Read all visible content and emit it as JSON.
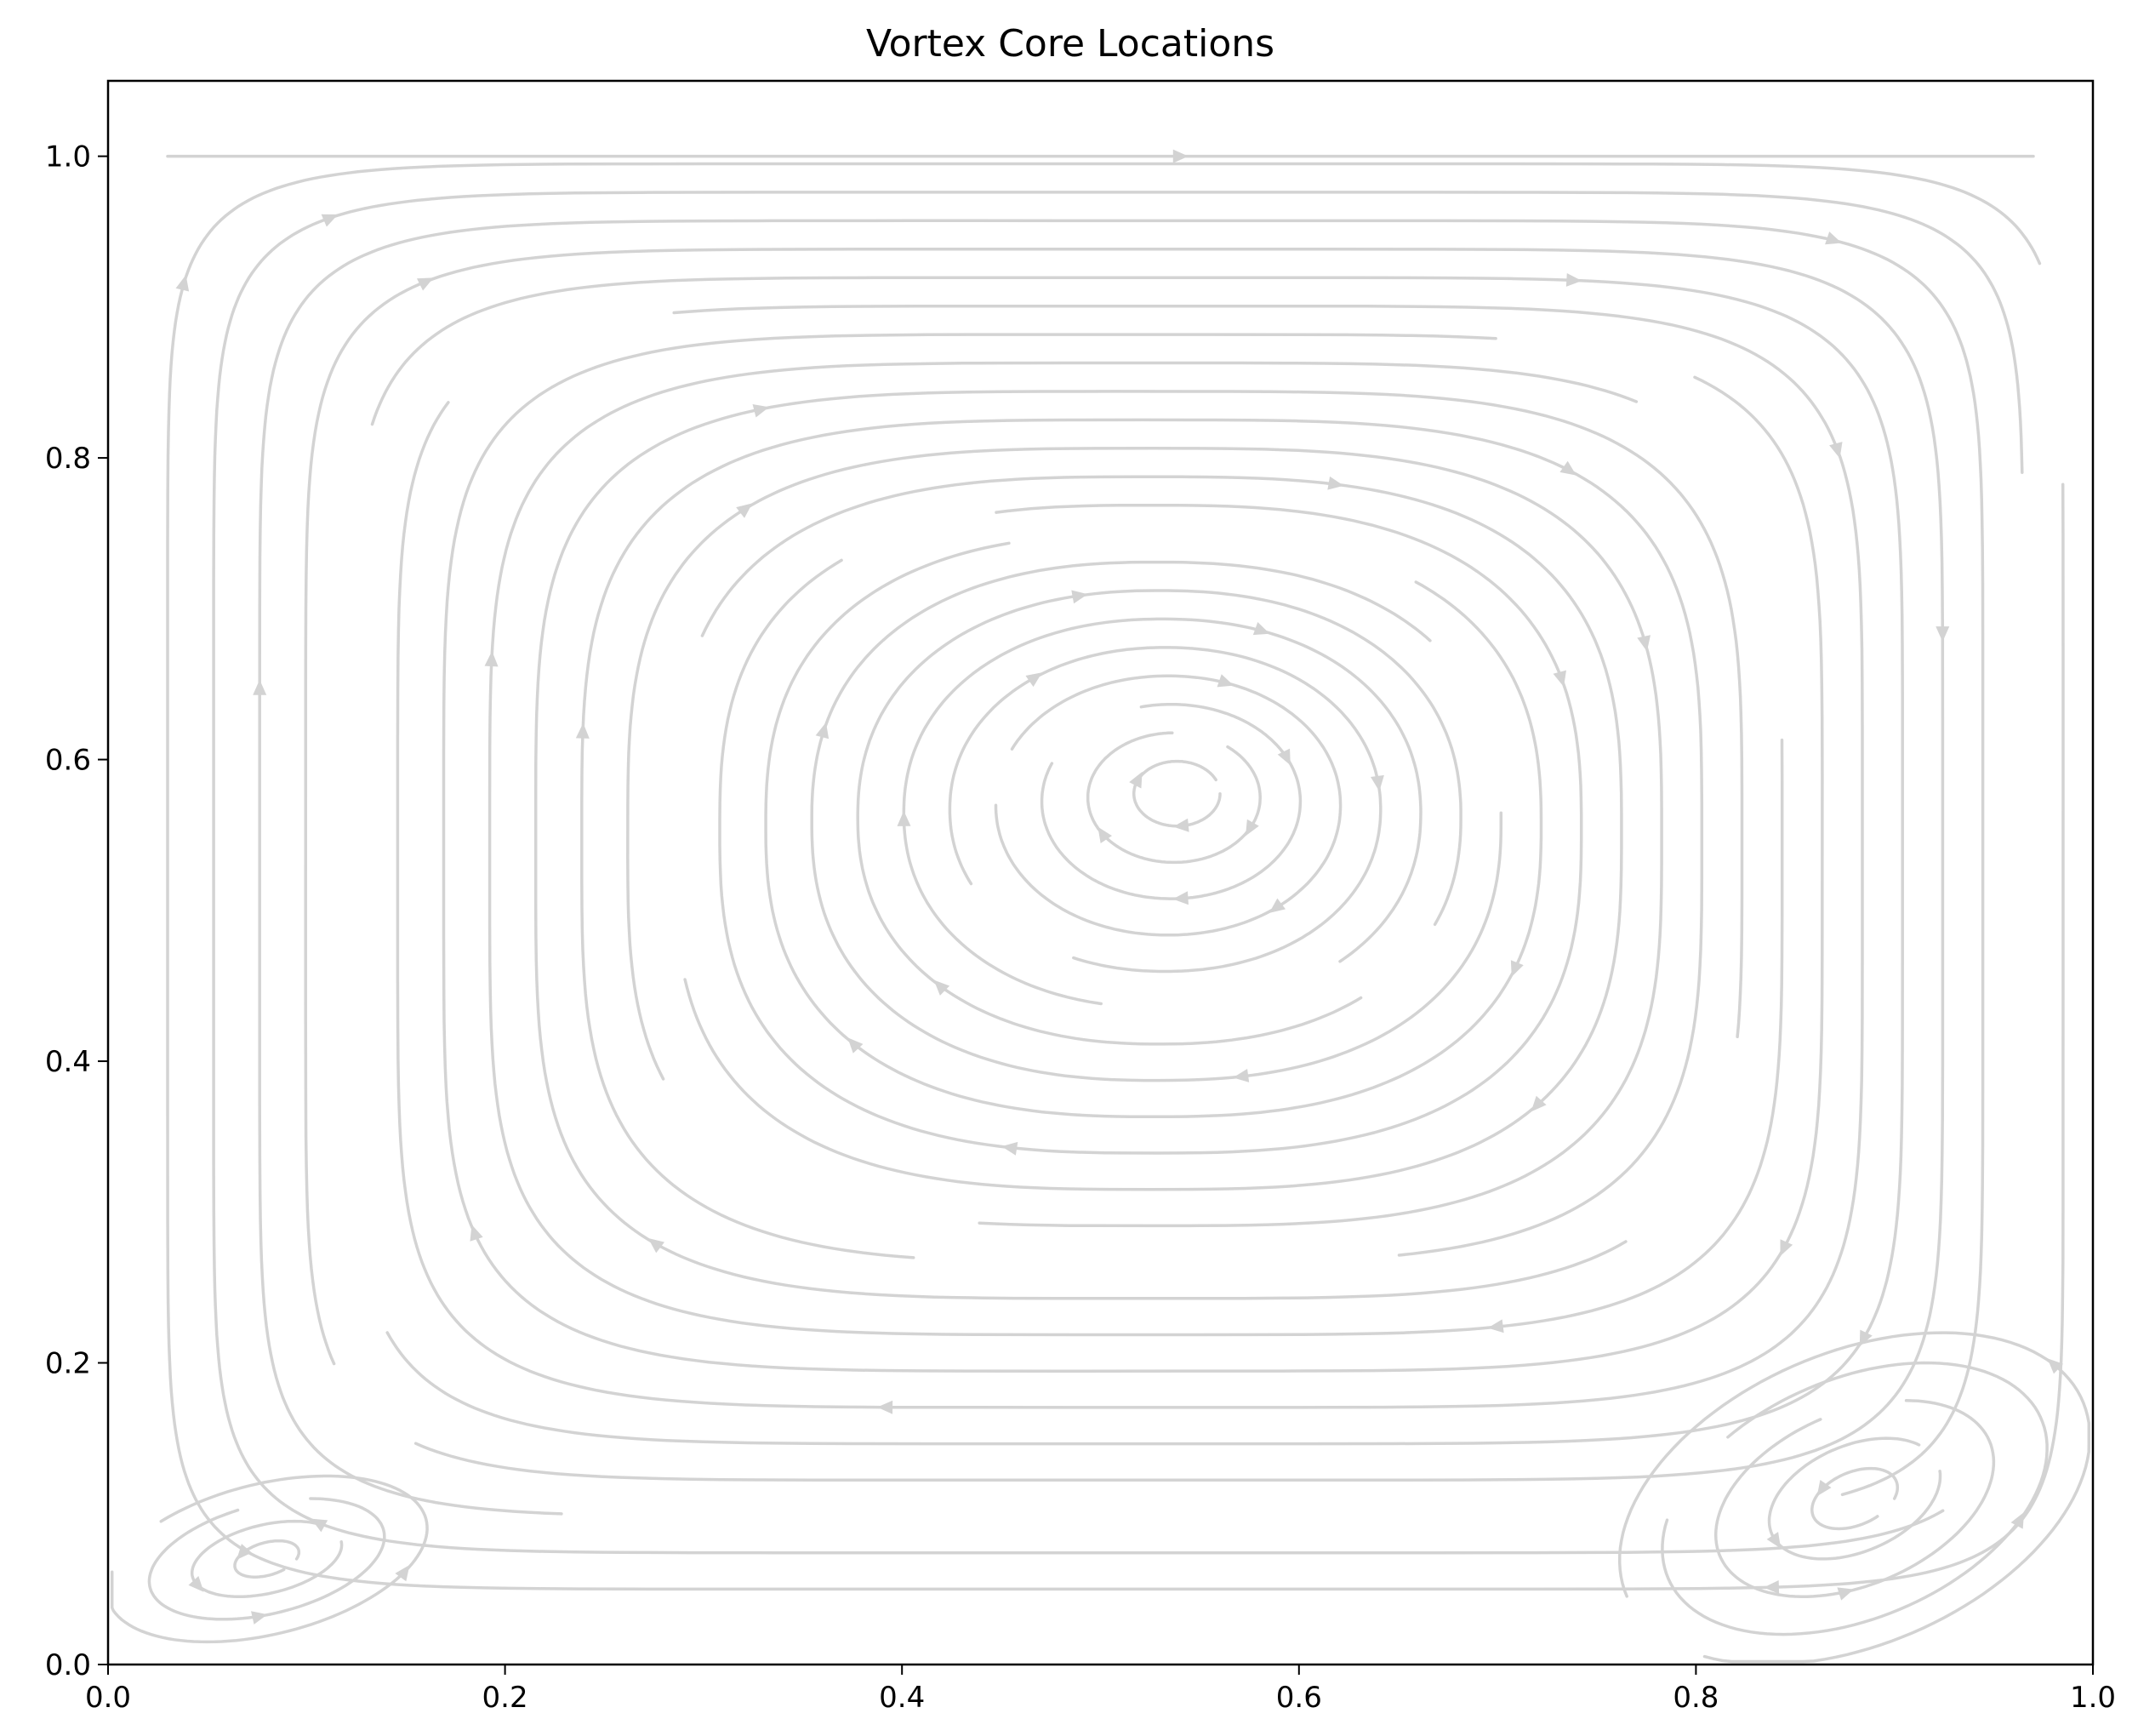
{
  "chart_data": {
    "type": "streamplot",
    "title": "Vortex Core Locations",
    "xlabel": "",
    "ylabel": "",
    "xlim": [
      0.0,
      1.0
    ],
    "ylim": [
      0.0,
      1.05
    ],
    "x_ticks": [
      "0.0",
      "0.2",
      "0.4",
      "0.6",
      "0.8",
      "1.0"
    ],
    "y_ticks": [
      "0.0",
      "0.2",
      "0.4",
      "0.6",
      "0.8",
      "1.0"
    ],
    "grid": false,
    "legend": "none",
    "stream_color": "#d3d3d3",
    "vortex_cores": [
      {
        "name": "primary",
        "x": 0.54,
        "y": 0.58,
        "rotation": "clockwise"
      },
      {
        "name": "bottom-left",
        "x": 0.08,
        "y": 0.07,
        "rotation": "counterclockwise"
      },
      {
        "name": "bottom-right",
        "x": 0.88,
        "y": 0.11,
        "rotation": "counterclockwise"
      }
    ],
    "lid": {
      "y": 1.0,
      "x_range": [
        0.03,
        0.97
      ],
      "direction": "+x"
    }
  }
}
